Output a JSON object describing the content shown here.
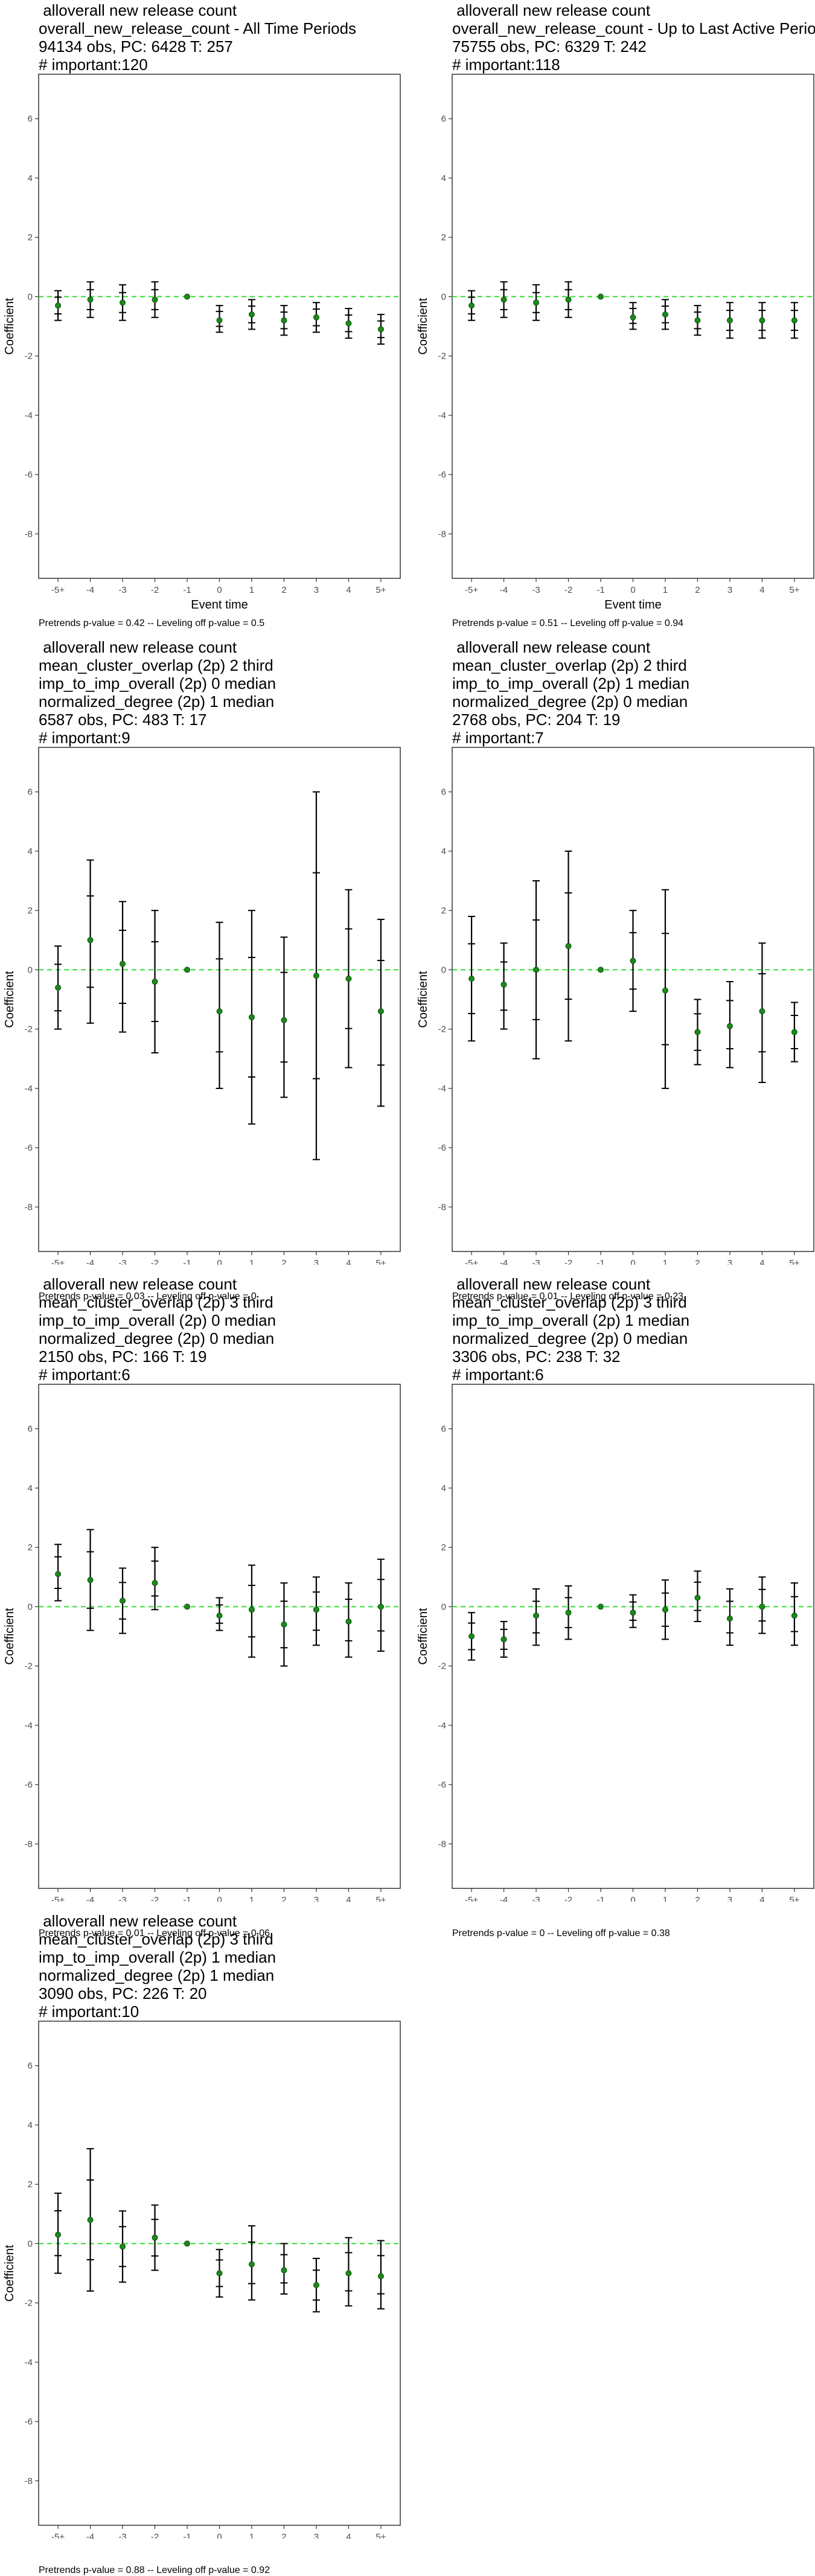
{
  "common": {
    "ylabel": "Coefficient",
    "xlabel": "Event time",
    "x_ticks": [
      "-5+",
      "-4",
      "-3",
      "-2",
      "-1",
      "0",
      "1",
      "2",
      "3",
      "4",
      "5+"
    ],
    "y_ticks": [
      "-8",
      "-6",
      "-4",
      "-2",
      "0",
      "2",
      "4",
      "6"
    ],
    "ylim": [
      -9.5,
      7.5
    ],
    "ref_line_color": "#33dd33",
    "point_color": "#1a8a1a"
  },
  "chart_data": [
    {
      "type": "scatter",
      "title_lines": [
        " alloverall new release count",
        "overall_new_release_count - All Time Periods",
        "94134 obs, PC: 6428 T: 257",
        "# important:120"
      ],
      "footnote": "Pretrends p-value = 0.42 -- Leveling off p-value = 0.5",
      "x": [
        "-5+",
        "-4",
        "-3",
        "-2",
        "-1",
        "0",
        "1",
        "2",
        "3",
        "4",
        "5+"
      ],
      "y": [
        -0.3,
        -0.1,
        -0.2,
        -0.1,
        0,
        -0.8,
        -0.6,
        -0.8,
        -0.7,
        -0.9,
        -1.1
      ],
      "ci_low": [
        -0.8,
        -0.7,
        -0.8,
        -0.7,
        0,
        -1.2,
        -1.1,
        -1.3,
        -1.2,
        -1.4,
        -1.6
      ],
      "ci_high": [
        0.2,
        0.5,
        0.4,
        0.5,
        0,
        -0.3,
        -0.1,
        -0.3,
        -0.2,
        -0.4,
        -0.6
      ]
    },
    {
      "type": "scatter",
      "title_lines": [
        " alloverall new release count",
        "overall_new_release_count - Up to Last Active Period",
        "75755 obs, PC: 6329 T: 242",
        "# important:118"
      ],
      "footnote": "Pretrends p-value = 0.51 -- Leveling off p-value = 0.94",
      "x": [
        "-5+",
        "-4",
        "-3",
        "-2",
        "-1",
        "0",
        "1",
        "2",
        "3",
        "4",
        "5+"
      ],
      "y": [
        -0.3,
        -0.1,
        -0.2,
        -0.1,
        0,
        -0.7,
        -0.6,
        -0.8,
        -0.8,
        -0.8,
        -0.8
      ],
      "ci_low": [
        -0.8,
        -0.7,
        -0.8,
        -0.7,
        0,
        -1.1,
        -1.1,
        -1.3,
        -1.4,
        -1.4,
        -1.4
      ],
      "ci_high": [
        0.2,
        0.5,
        0.4,
        0.5,
        0,
        -0.2,
        -0.1,
        -0.3,
        -0.2,
        -0.2,
        -0.2
      ]
    },
    {
      "type": "scatter",
      "title_lines": [
        " alloverall new release count",
        "mean_cluster_overlap (2p) 2 third",
        "imp_to_imp_overall (2p) 0 median",
        "normalized_degree (2p) 1 median",
        "6587 obs, PC: 483 T: 17",
        "# important:9"
      ],
      "footnote": "Pretrends p-value = 0.03 -- Leveling off p-value = 0",
      "x": [
        "-5+",
        "-4",
        "-3",
        "-2",
        "-1",
        "0",
        "1",
        "2",
        "3",
        "4",
        "5+"
      ],
      "y": [
        -0.6,
        1.0,
        0.2,
        -0.4,
        0,
        -1.4,
        -1.6,
        -1.7,
        -0.2,
        -0.3,
        -1.4
      ],
      "ci_low": [
        -2.0,
        -1.8,
        -2.1,
        -2.8,
        0,
        -4.0,
        -5.2,
        -4.3,
        -6.4,
        -3.3,
        -4.6
      ],
      "ci_high": [
        0.8,
        3.7,
        2.3,
        2.0,
        0,
        1.6,
        2.0,
        1.1,
        6.0,
        2.7,
        1.7
      ]
    },
    {
      "type": "scatter",
      "title_lines": [
        " alloverall new release count",
        "mean_cluster_overlap (2p) 2 third",
        "imp_to_imp_overall (2p) 1 median",
        "normalized_degree (2p) 0 median",
        "2768 obs, PC: 204 T: 19",
        "# important:7"
      ],
      "footnote": "Pretrends p-value = 0.01 -- Leveling off p-value = 0.23",
      "x": [
        "-5+",
        "-4",
        "-3",
        "-2",
        "-1",
        "0",
        "1",
        "2",
        "3",
        "4",
        "5+"
      ],
      "y": [
        -0.3,
        -0.5,
        0.0,
        0.8,
        0,
        0.3,
        -0.7,
        -2.1,
        -1.9,
        -1.4,
        -2.1
      ],
      "ci_low": [
        -2.4,
        -2.0,
        -3.0,
        -2.4,
        0,
        -1.4,
        -4.0,
        -3.2,
        -3.3,
        -3.8,
        -3.1
      ],
      "ci_high": [
        1.8,
        0.9,
        3.0,
        4.0,
        0,
        2.0,
        2.7,
        -1.0,
        -0.4,
        0.9,
        -1.1
      ]
    },
    {
      "type": "scatter",
      "title_lines": [
        " alloverall new release count",
        "mean_cluster_overlap (2p) 3 third",
        "imp_to_imp_overall (2p) 0 median",
        "normalized_degree (2p) 0 median",
        "2150 obs, PC: 166 T: 19",
        "# important:6"
      ],
      "footnote": "Pretrends p-value = 0.01 -- Leveling off p-value = 0.06",
      "x": [
        "-5+",
        "-4",
        "-3",
        "-2",
        "-1",
        "0",
        "1",
        "2",
        "3",
        "4",
        "5+"
      ],
      "y": [
        1.1,
        0.9,
        0.2,
        0.8,
        0,
        -0.3,
        -0.1,
        -0.6,
        -0.1,
        -0.5,
        0.0
      ],
      "ci_low": [
        0.2,
        -0.8,
        -0.9,
        -0.1,
        0,
        -0.8,
        -1.7,
        -2.0,
        -1.3,
        -1.7,
        -1.5
      ],
      "ci_high": [
        2.1,
        2.6,
        1.3,
        2.0,
        0,
        0.3,
        1.4,
        0.8,
        1.0,
        0.8,
        1.6
      ]
    },
    {
      "type": "scatter",
      "title_lines": [
        " alloverall new release count",
        "mean_cluster_overlap (2p) 3 third",
        "imp_to_imp_overall (2p) 1 median",
        "normalized_degree (2p) 0 median",
        "3306 obs, PC: 238 T: 32",
        "# important:6"
      ],
      "footnote": "Pretrends p-value = 0 -- Leveling off p-value = 0.38",
      "x": [
        "-5+",
        "-4",
        "-3",
        "-2",
        "-1",
        "0",
        "1",
        "2",
        "3",
        "4",
        "5+"
      ],
      "y": [
        -1.0,
        -1.1,
        -0.3,
        -0.2,
        0,
        -0.2,
        -0.1,
        0.3,
        -0.4,
        0.0,
        -0.3
      ],
      "ci_low": [
        -1.8,
        -1.7,
        -1.3,
        -1.1,
        0,
        -0.7,
        -1.1,
        -0.5,
        -1.3,
        -0.9,
        -1.3
      ],
      "ci_high": [
        -0.2,
        -0.5,
        0.6,
        0.7,
        0,
        0.4,
        0.9,
        1.2,
        0.6,
        1.0,
        0.8
      ]
    },
    {
      "type": "scatter",
      "title_lines": [
        " alloverall new release count",
        "mean_cluster_overlap (2p) 3 third",
        "imp_to_imp_overall (2p) 1 median",
        "normalized_degree (2p) 1 median",
        "3090 obs, PC: 226 T: 20",
        "# important:10"
      ],
      "footnote": "Pretrends p-value = 0.88 -- Leveling off p-value = 0.92",
      "x": [
        "-5+",
        "-4",
        "-3",
        "-2",
        "-1",
        "0",
        "1",
        "2",
        "3",
        "4",
        "5+"
      ],
      "y": [
        0.3,
        0.8,
        -0.1,
        0.2,
        0,
        -1.0,
        -0.7,
        -0.9,
        -1.4,
        -1.0,
        -1.1
      ],
      "ci_low": [
        -1.0,
        -1.6,
        -1.3,
        -0.9,
        0,
        -1.8,
        -1.9,
        -1.7,
        -2.3,
        -2.1,
        -2.2
      ],
      "ci_high": [
        1.7,
        3.2,
        1.1,
        1.3,
        0,
        -0.2,
        0.6,
        0.0,
        -0.5,
        0.2,
        0.1
      ]
    }
  ]
}
